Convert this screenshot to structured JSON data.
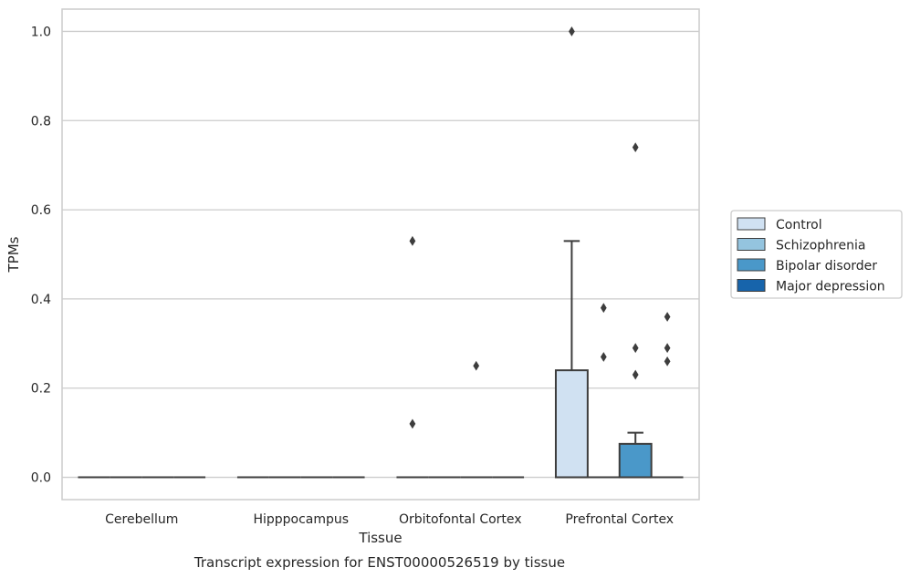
{
  "chart_data": {
    "type": "box",
    "title": "Transcript expression for ENST00000526519 by tissue",
    "xlabel": "Tissue",
    "ylabel": "TPMs",
    "ylim": [
      -0.05,
      1.05
    ],
    "yticks": [
      "0.0",
      "0.2",
      "0.4",
      "0.6",
      "0.8",
      "1.0"
    ],
    "grid": true,
    "legend_position": "right",
    "categories": [
      "Cerebellum",
      "Hipppocampus",
      "Orbitofontal Cortex",
      "Prefrontal Cortex"
    ],
    "series": [
      {
        "name": "Control",
        "color": "#d0e1f2"
      },
      {
        "name": "Schizophrenia",
        "color": "#94c4df"
      },
      {
        "name": "Bipolar disorder",
        "color": "#4a98c9"
      },
      {
        "name": "Major depression",
        "color": "#1764ab"
      }
    ],
    "boxes": [
      {
        "category": 0,
        "series": 0,
        "q1": 0,
        "median": 0,
        "q3": 0,
        "whisker_low": 0,
        "whisker_high": 0,
        "outliers": []
      },
      {
        "category": 0,
        "series": 1,
        "q1": 0,
        "median": 0,
        "q3": 0,
        "whisker_low": 0,
        "whisker_high": 0,
        "outliers": []
      },
      {
        "category": 0,
        "series": 2,
        "q1": 0,
        "median": 0,
        "q3": 0,
        "whisker_low": 0,
        "whisker_high": 0,
        "outliers": []
      },
      {
        "category": 0,
        "series": 3,
        "q1": 0,
        "median": 0,
        "q3": 0,
        "whisker_low": 0,
        "whisker_high": 0,
        "outliers": []
      },
      {
        "category": 1,
        "series": 0,
        "q1": 0,
        "median": 0,
        "q3": 0,
        "whisker_low": 0,
        "whisker_high": 0,
        "outliers": []
      },
      {
        "category": 1,
        "series": 1,
        "q1": 0,
        "median": 0,
        "q3": 0,
        "whisker_low": 0,
        "whisker_high": 0,
        "outliers": []
      },
      {
        "category": 1,
        "series": 2,
        "q1": 0,
        "median": 0,
        "q3": 0,
        "whisker_low": 0,
        "whisker_high": 0,
        "outliers": []
      },
      {
        "category": 1,
        "series": 3,
        "q1": 0,
        "median": 0,
        "q3": 0,
        "whisker_low": 0,
        "whisker_high": 0,
        "outliers": []
      },
      {
        "category": 2,
        "series": 0,
        "q1": 0,
        "median": 0,
        "q3": 0,
        "whisker_low": 0,
        "whisker_high": 0,
        "outliers": [
          0.53,
          0.12
        ]
      },
      {
        "category": 2,
        "series": 1,
        "q1": 0,
        "median": 0,
        "q3": 0,
        "whisker_low": 0,
        "whisker_high": 0,
        "outliers": []
      },
      {
        "category": 2,
        "series": 2,
        "q1": 0,
        "median": 0,
        "q3": 0,
        "whisker_low": 0,
        "whisker_high": 0,
        "outliers": [
          0.25
        ]
      },
      {
        "category": 2,
        "series": 3,
        "q1": 0,
        "median": 0,
        "q3": 0,
        "whisker_low": 0,
        "whisker_high": 0,
        "outliers": []
      },
      {
        "category": 3,
        "series": 0,
        "q1": 0,
        "median": 0,
        "q3": 0.24,
        "whisker_low": 0,
        "whisker_high": 0.53,
        "outliers": [
          1.0
        ]
      },
      {
        "category": 3,
        "series": 1,
        "q1": 0,
        "median": 0,
        "q3": 0,
        "whisker_low": 0,
        "whisker_high": 0,
        "outliers": [
          0.38,
          0.27
        ]
      },
      {
        "category": 3,
        "series": 2,
        "q1": 0,
        "median": 0,
        "q3": 0.075,
        "whisker_low": 0,
        "whisker_high": 0.1,
        "outliers": [
          0.74,
          0.29,
          0.23
        ]
      },
      {
        "category": 3,
        "series": 3,
        "q1": 0,
        "median": 0,
        "q3": 0,
        "whisker_low": 0,
        "whisker_high": 0,
        "outliers": [
          0.36,
          0.29,
          0.26
        ]
      }
    ]
  }
}
